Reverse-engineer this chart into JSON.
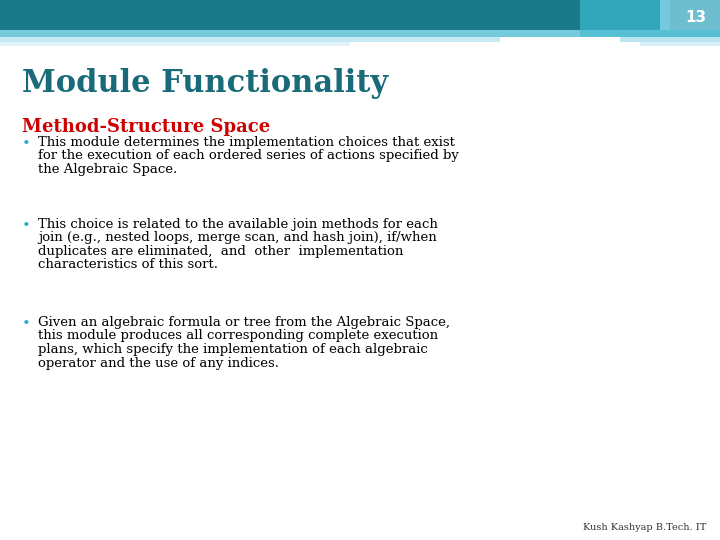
{
  "slide_number": "13",
  "title": "Module Functionality",
  "subtitle": "Method-Structure Space",
  "subtitle_color": "#cc0000",
  "title_color": "#1a6b7a",
  "slide_bg": "#ffffff",
  "header_dark": "#1a7a8a",
  "header_mid": "#3ab5cc",
  "header_light": "#8dd6e8",
  "header_vlight": "#b8e5f0",
  "slide_num_color": "#ffffff",
  "body_color": "#000000",
  "bullet_color": "#2ab0cc",
  "bullet_points": [
    "This module determines the implementation choices that exist\nfor the execution of each ordered series of actions specified by\nthe Algebraic Space.",
    "This choice is related to the available join methods for each\njoin (e.g., nested loops, merge scan, and hash join), if/when\nduplicates are eliminated,  and  other  implementation\ncharacteristics of this sort.",
    "Given an algebraic formula or tree from the Algebraic Space,\nthis module produces all corresponding complete execution\nplans, which specify the implementation of each algebraic\noperator and the use of any indices."
  ],
  "footer_text": "Kush Kashyap B.Tech. IT",
  "title_fontsize": 22,
  "subtitle_fontsize": 13,
  "body_fontsize": 9.5,
  "slide_num_fontsize": 11,
  "footer_fontsize": 7
}
